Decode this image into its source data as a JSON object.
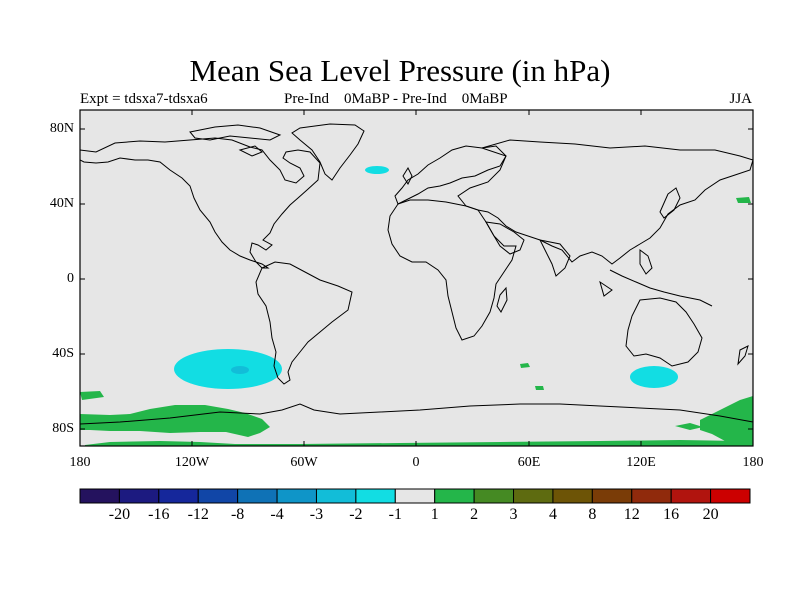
{
  "title": "Mean Sea Level Pressure (in hPa)",
  "subtitle_left": "Expt = tdsxa7-tdsxa6",
  "subtitle_center": "Pre-Ind    0MaBP - Pre-Ind    0MaBP",
  "subtitle_right": "JJA",
  "map": {
    "projection": "cylindrical equidistant",
    "background_color": "#e6e6e6",
    "coastline_color": "#000000",
    "lat_labels": [
      "80N",
      "40N",
      "0",
      "40S",
      "80S"
    ],
    "lon_labels": [
      "180",
      "120W",
      "60W",
      "0",
      "60E",
      "120E",
      "180"
    ]
  },
  "colorbar": {
    "labels": [
      "-20",
      "-16",
      "-12",
      "-8",
      "-4",
      "-3",
      "-2",
      "-1",
      "1",
      "2",
      "3",
      "4",
      "8",
      "12",
      "16",
      "20"
    ],
    "colors": [
      "#24125e",
      "#1c1a80",
      "#15279b",
      "#1146a7",
      "#0f72b6",
      "#0f95c8",
      "#12bdd8",
      "#12dde3",
      "#e6e6e6",
      "#24b64a",
      "#458a23",
      "#5e6b10",
      "#6d5406",
      "#7a3c07",
      "#902a0c",
      "#b1140e",
      "#cc0000"
    ]
  },
  "anomalies": [
    {
      "name": "south pacific negative",
      "value": "-2 to -1",
      "color": "#12dde3"
    },
    {
      "name": "south pacific core",
      "value": "-3 to -2",
      "color": "#12bdd8"
    },
    {
      "name": "south indian negative",
      "value": "-2 to -1",
      "color": "#12dde3"
    },
    {
      "name": "north atlantic negative",
      "value": "-2 to -1",
      "color": "#12dde3"
    },
    {
      "name": "antarctic positive",
      "value": "1 to 2",
      "color": "#24b64a"
    }
  ]
}
